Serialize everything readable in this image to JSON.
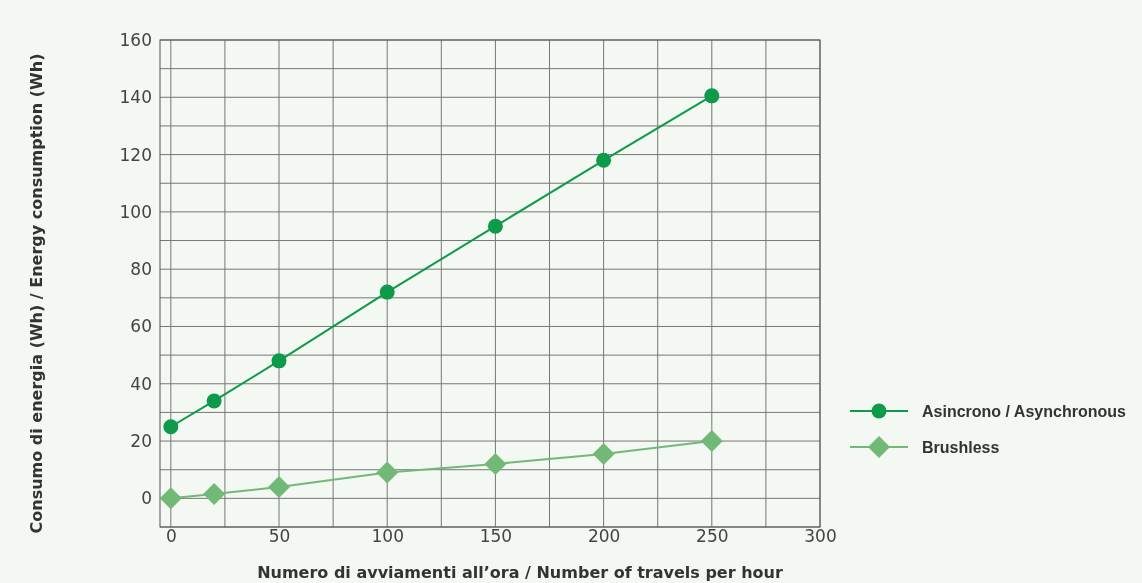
{
  "chart_data": {
    "type": "line",
    "xlabel": "Numero di avviamenti all’ora / Number of travels per hour",
    "ylabel": "Consumo di energia (Wh)  / Energy consumption (Wh)",
    "x": [
      0,
      20,
      50,
      100,
      150,
      200,
      250
    ],
    "series": [
      {
        "name": "Asincrono / Asynchronous",
        "color": "#0d9a4a",
        "marker": "circle",
        "values": [
          25,
          34,
          48,
          72,
          95,
          118,
          140.5
        ]
      },
      {
        "name": "Brushless",
        "color": "#72b978",
        "marker": "diamond",
        "values": [
          0,
          1.5,
          4,
          9,
          12,
          15.5,
          20
        ]
      }
    ],
    "xlim": [
      -5,
      300
    ],
    "xticks": [
      0,
      {
        "value": 25,
        "label": null
      },
      50,
      {
        "value": 75,
        "label": null
      },
      100,
      {
        "value": 125,
        "label": null
      },
      150,
      {
        "value": 175,
        "label": null
      },
      200,
      {
        "value": 225,
        "label": null
      },
      250,
      {
        "value": 275,
        "label": null
      },
      300
    ],
    "ylim": [
      -10,
      160
    ],
    "yticks": [
      {
        "value": -10,
        "label": null
      },
      0,
      {
        "value": 10,
        "label": null
      },
      20,
      {
        "value": 30,
        "label": null
      },
      40,
      {
        "value": 50,
        "label": null
      },
      60,
      {
        "value": 70,
        "label": null
      },
      80,
      {
        "value": 90,
        "label": null
      },
      100,
      {
        "value": 110,
        "label": null
      },
      120,
      {
        "value": 130,
        "label": null
      },
      140,
      {
        "value": 150,
        "label": null
      },
      160
    ],
    "grid": true,
    "legend": "right",
    "line_style": "solid"
  }
}
